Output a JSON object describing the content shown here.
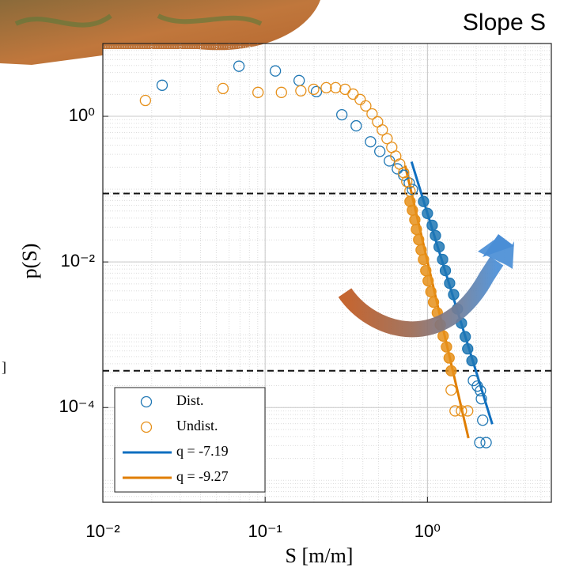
{
  "chart_data": {
    "type": "scatter",
    "title": "Slope S",
    "xlabel": "S [m/m]",
    "ylabel": "p(S)",
    "annotation": "]",
    "xscale": "log",
    "yscale": "log",
    "grid": true,
    "legend": "lower left",
    "xlim": [
      0.01,
      5.8
    ],
    "ylim": [
      5e-06,
      10
    ],
    "xticks": [
      {
        "value": 0.01,
        "label": "10⁻²"
      },
      {
        "value": 0.1,
        "label": "10⁻¹"
      },
      {
        "value": 1,
        "label": "10⁰"
      }
    ],
    "yticks": [
      {
        "value": 1,
        "label": "10⁰"
      },
      {
        "value": 0.01,
        "label": "10⁻²"
      },
      {
        "value": 0.0001,
        "label": "10⁻⁴"
      }
    ],
    "hlines": [
      0.087,
      0.00032
    ],
    "series": [
      {
        "name": "Dist.",
        "color": "#1f77b4",
        "marker": "open",
        "x": [
          0.0232,
          0.069,
          0.1156,
          0.162,
          0.207,
          0.297,
          0.364,
          0.446,
          0.509,
          0.583,
          0.653,
          0.714,
          0.773,
          0.808,
          1.92,
          2.03,
          2.12,
          2.15,
          2.19,
          2.1,
          2.3
        ],
        "y": [
          2.67,
          4.88,
          4.2,
          3.1,
          2.18,
          1.05,
          0.74,
          0.447,
          0.33,
          0.244,
          0.19,
          0.155,
          0.121,
          0.099,
          0.000235,
          0.000197,
          0.00017,
          0.000132,
          6.7e-05,
          3.3e-05,
          3.3e-05
        ]
      },
      {
        "color": "#1f77b4",
        "marker": "filled",
        "x": [
          0.946,
          1.0,
          1.07,
          1.12,
          1.18,
          1.24,
          1.29,
          1.37,
          1.45,
          1.53,
          1.62,
          1.71,
          1.77,
          1.88
        ],
        "y": [
          0.0677,
          0.0464,
          0.0318,
          0.023,
          0.0161,
          0.0108,
          0.0076,
          0.0051,
          0.00356,
          0.00226,
          0.00144,
          0.00094,
          0.00064,
          0.00044
        ]
      },
      {
        "name": "Undist.",
        "color": "#e6901a",
        "marker": "open",
        "x": [
          0.0183,
          0.055,
          0.0904,
          0.126,
          0.166,
          0.199,
          0.238,
          0.272,
          0.311,
          0.348,
          0.385,
          0.417,
          0.456,
          0.493,
          0.527,
          0.564,
          0.603,
          0.638,
          0.675,
          0.714,
          0.746,
          0.781,
          1.4,
          1.48,
          1.62,
          1.77
        ],
        "y": [
          1.65,
          2.41,
          2.13,
          2.13,
          2.24,
          2.35,
          2.47,
          2.47,
          2.35,
          2.02,
          1.7,
          1.39,
          1.08,
          0.84,
          0.65,
          0.494,
          0.375,
          0.284,
          0.221,
          0.168,
          0.127,
          0.094,
          0.000174,
          9e-05,
          9e-05,
          9e-05
        ]
      },
      {
        "color": "#e6901a",
        "marker": "filled",
        "x": [
          0.781,
          0.808,
          0.836,
          0.855,
          0.883,
          0.914,
          0.946,
          0.977,
          1.01,
          1.05,
          1.09,
          1.15,
          1.2,
          1.25,
          1.31,
          1.36,
          1.4
        ],
        "y": [
          0.0677,
          0.0513,
          0.0379,
          0.028,
          0.0202,
          0.0146,
          0.0108,
          0.0076,
          0.0055,
          0.0039,
          0.0028,
          0.002,
          0.00137,
          0.00096,
          0.00068,
          0.00048,
          0.00032
        ]
      },
      {
        "name": "q = -7.19",
        "color": "#0f6fc0",
        "marker": "line",
        "x": [
          0.798,
          2.51
        ],
        "y": [
          0.238,
          5.9e-05
        ]
      },
      {
        "name": "q = -9.27",
        "color": "#e07e00",
        "marker": "line",
        "x": [
          0.729,
          1.79
        ],
        "y": [
          0.21,
          3.8e-05
        ]
      }
    ]
  }
}
